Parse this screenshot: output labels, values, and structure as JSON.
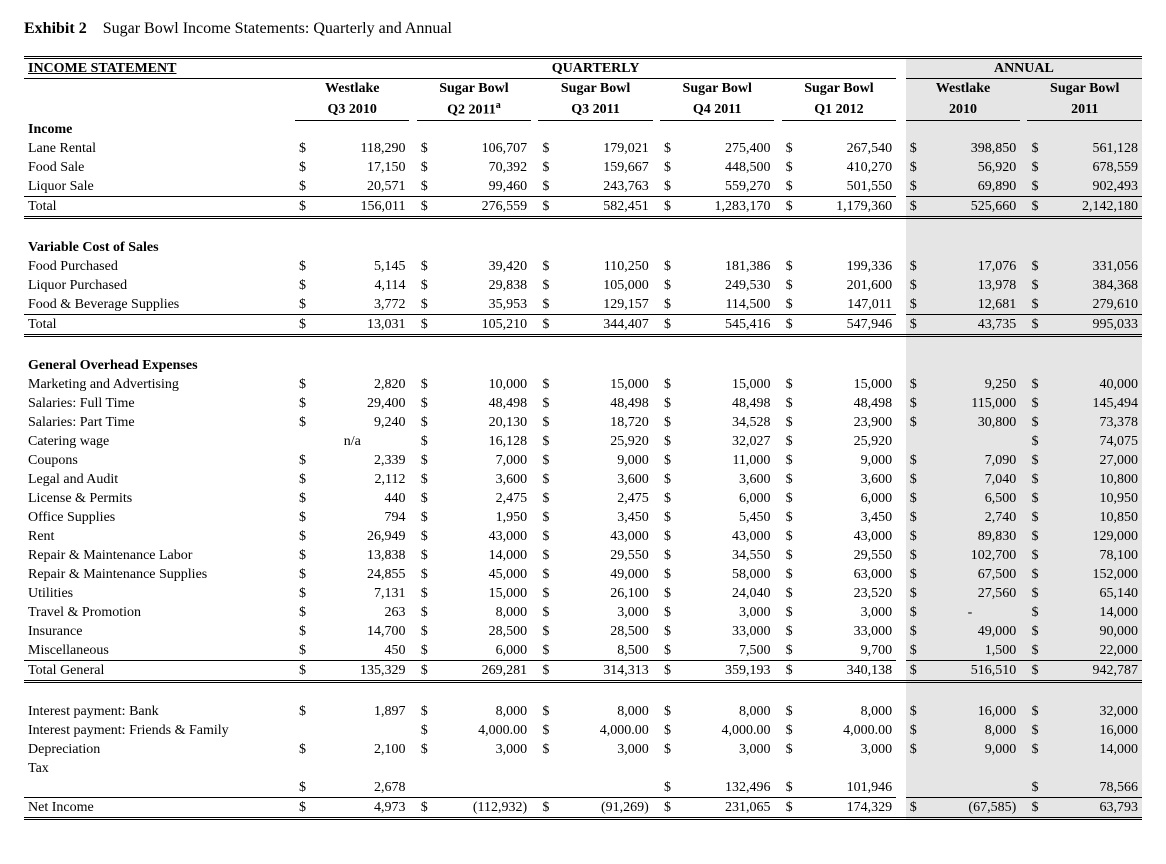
{
  "title_lead": "Exhibit 2",
  "title_rest": "Sugar Bowl Income Statements:  Quarterly and Annual",
  "header": {
    "main": "INCOME STATEMENT",
    "quarterly": "QUARTERLY",
    "annual": "ANNUAL",
    "cols": [
      {
        "top": "Westlake",
        "sub": "Q3 2010",
        "sup": ""
      },
      {
        "top": "Sugar Bowl",
        "sub": "Q2 2011",
        "sup": "a"
      },
      {
        "top": "Sugar Bowl",
        "sub": "Q3 2011",
        "sup": ""
      },
      {
        "top": "Sugar Bowl",
        "sub": "Q4 2011",
        "sup": ""
      },
      {
        "top": "Sugar Bowl",
        "sub": "Q1 2012",
        "sup": ""
      }
    ],
    "annual_cols": [
      {
        "top": "Westlake",
        "sub": "2010"
      },
      {
        "top": "Sugar Bowl",
        "sub": "2011"
      }
    ]
  },
  "sections": {
    "income": {
      "title": "Income",
      "rows": [
        {
          "label": "Lane Rental",
          "q": [
            "118,290",
            "106,707",
            "179,021",
            "275,400",
            "267,540"
          ],
          "a": [
            "398,850",
            "561,128"
          ]
        },
        {
          "label": "Food Sale",
          "q": [
            "17,150",
            "70,392",
            "159,667",
            "448,500",
            "410,270"
          ],
          "a": [
            "56,920",
            "678,559"
          ]
        },
        {
          "label": "Liquor Sale",
          "q": [
            "20,571",
            "99,460",
            "243,763",
            "559,270",
            "501,550"
          ],
          "a": [
            "69,890",
            "902,493"
          ]
        }
      ],
      "total": {
        "label": "Total",
        "q": [
          "156,011",
          "276,559",
          "582,451",
          "1,283,170",
          "1,179,360"
        ],
        "a": [
          "525,660",
          "2,142,180"
        ]
      }
    },
    "variable": {
      "title": "Variable Cost of Sales",
      "rows": [
        {
          "label": "Food Purchased",
          "q": [
            "5,145",
            "39,420",
            "110,250",
            "181,386",
            "199,336"
          ],
          "a": [
            "17,076",
            "331,056"
          ]
        },
        {
          "label": "Liquor Purchased",
          "q": [
            "4,114",
            "29,838",
            "105,000",
            "249,530",
            "201,600"
          ],
          "a": [
            "13,978",
            "384,368"
          ]
        },
        {
          "label": "Food & Beverage Supplies",
          "q": [
            "3,772",
            "35,953",
            "129,157",
            "114,500",
            "147,011"
          ],
          "a": [
            "12,681",
            "279,610"
          ]
        }
      ],
      "total": {
        "label": "Total",
        "q": [
          "13,031",
          "105,210",
          "344,407",
          "545,416",
          "547,946"
        ],
        "a": [
          "43,735",
          "995,033"
        ]
      }
    },
    "overhead": {
      "title": "General Overhead Expenses",
      "rows": [
        {
          "label": "Marketing and Advertising",
          "q": [
            "2,820",
            "10,000",
            "15,000",
            "15,000",
            "15,000"
          ],
          "a": [
            "9,250",
            "40,000"
          ]
        },
        {
          "label": "Salaries: Full Time",
          "q": [
            "29,400",
            "48,498",
            "48,498",
            "48,498",
            "48,498"
          ],
          "a": [
            "115,000",
            "145,494"
          ]
        },
        {
          "label": "Salaries: Part Time",
          "q": [
            "9,240",
            "20,130",
            "18,720",
            "34,528",
            "23,900"
          ],
          "a": [
            "30,800",
            "73,378"
          ]
        },
        {
          "label": "Catering wage",
          "q": [
            "n/a",
            "16,128",
            "25,920",
            "32,027",
            "25,920"
          ],
          "a": [
            "",
            "74,075"
          ],
          "na0": true,
          "no_a0_sym": true
        },
        {
          "label": "Coupons",
          "q": [
            "2,339",
            "7,000",
            "9,000",
            "11,000",
            "9,000"
          ],
          "a": [
            "7,090",
            "27,000"
          ]
        },
        {
          "label": "Legal and Audit",
          "q": [
            "2,112",
            "3,600",
            "3,600",
            "3,600",
            "3,600"
          ],
          "a": [
            "7,040",
            "10,800"
          ]
        },
        {
          "label": "License & Permits",
          "q": [
            "440",
            "2,475",
            "2,475",
            "6,000",
            "6,000"
          ],
          "a": [
            "6,500",
            "10,950"
          ]
        },
        {
          "label": "Office Supplies",
          "q": [
            "794",
            "1,950",
            "3,450",
            "5,450",
            "3,450"
          ],
          "a": [
            "2,740",
            "10,850"
          ]
        },
        {
          "label": "Rent",
          "q": [
            "26,949",
            "43,000",
            "43,000",
            "43,000",
            "43,000"
          ],
          "a": [
            "89,830",
            "129,000"
          ]
        },
        {
          "label": "Repair & Maintenance Labor",
          "q": [
            "13,838",
            "14,000",
            "29,550",
            "34,550",
            "29,550"
          ],
          "a": [
            "102,700",
            "78,100"
          ]
        },
        {
          "label": "Repair & Maintenance Supplies",
          "q": [
            "24,855",
            "45,000",
            "49,000",
            "58,000",
            "63,000"
          ],
          "a": [
            "67,500",
            "152,000"
          ]
        },
        {
          "label": "Utilities",
          "q": [
            "7,131",
            "15,000",
            "26,100",
            "24,040",
            "23,520"
          ],
          "a": [
            "27,560",
            "65,140"
          ]
        },
        {
          "label": "Travel & Promotion",
          "q": [
            "263",
            "8,000",
            "3,000",
            "3,000",
            "3,000"
          ],
          "a": [
            "-",
            "14,000"
          ],
          "dash_a0": true
        },
        {
          "label": "Insurance",
          "q": [
            "14,700",
            "28,500",
            "28,500",
            "33,000",
            "33,000"
          ],
          "a": [
            "49,000",
            "90,000"
          ]
        },
        {
          "label": "Miscellaneous",
          "q": [
            "450",
            "6,000",
            "8,500",
            "7,500",
            "9,700"
          ],
          "a": [
            "1,500",
            "22,000"
          ]
        }
      ],
      "total": {
        "label": "Total General",
        "q": [
          "135,329",
          "269,281",
          "314,313",
          "359,193",
          "340,138"
        ],
        "a": [
          "516,510",
          "942,787"
        ]
      }
    },
    "other": {
      "rows": [
        {
          "label": "Interest payment:  Bank",
          "q": [
            "1,897",
            "8,000",
            "8,000",
            "8,000",
            "8,000"
          ],
          "a": [
            "16,000",
            "32,000"
          ]
        },
        {
          "label": "Interest payment: Friends & Family",
          "q": [
            "",
            "4,000.00",
            "4,000.00",
            "4,000.00",
            "4,000.00"
          ],
          "a": [
            "8,000",
            "16,000"
          ],
          "no_q0_sym": true
        },
        {
          "label": "Depreciation",
          "q": [
            "2,100",
            "3,000",
            "3,000",
            "3,000",
            "3,000"
          ],
          "a": [
            "9,000",
            "14,000"
          ]
        }
      ],
      "tax": {
        "label": "Tax",
        "q": [
          "2,678",
          "",
          "",
          "132,496",
          "101,946"
        ],
        "a": [
          "",
          "78,566"
        ],
        "no_a0_sym": true,
        "q_sym": [
          true,
          false,
          false,
          true,
          true
        ]
      },
      "net": {
        "label": "Net Income",
        "q": [
          "4,973",
          "(112,932)",
          "(91,269)",
          "231,065",
          "174,329"
        ],
        "a": [
          "(67,585)",
          "63,793"
        ]
      }
    }
  },
  "style": {
    "shaded_bg": "#e5e5e5",
    "font": "Book Antiqua / Palatino",
    "font_size_pt": 14,
    "title_size_pt": 16
  }
}
